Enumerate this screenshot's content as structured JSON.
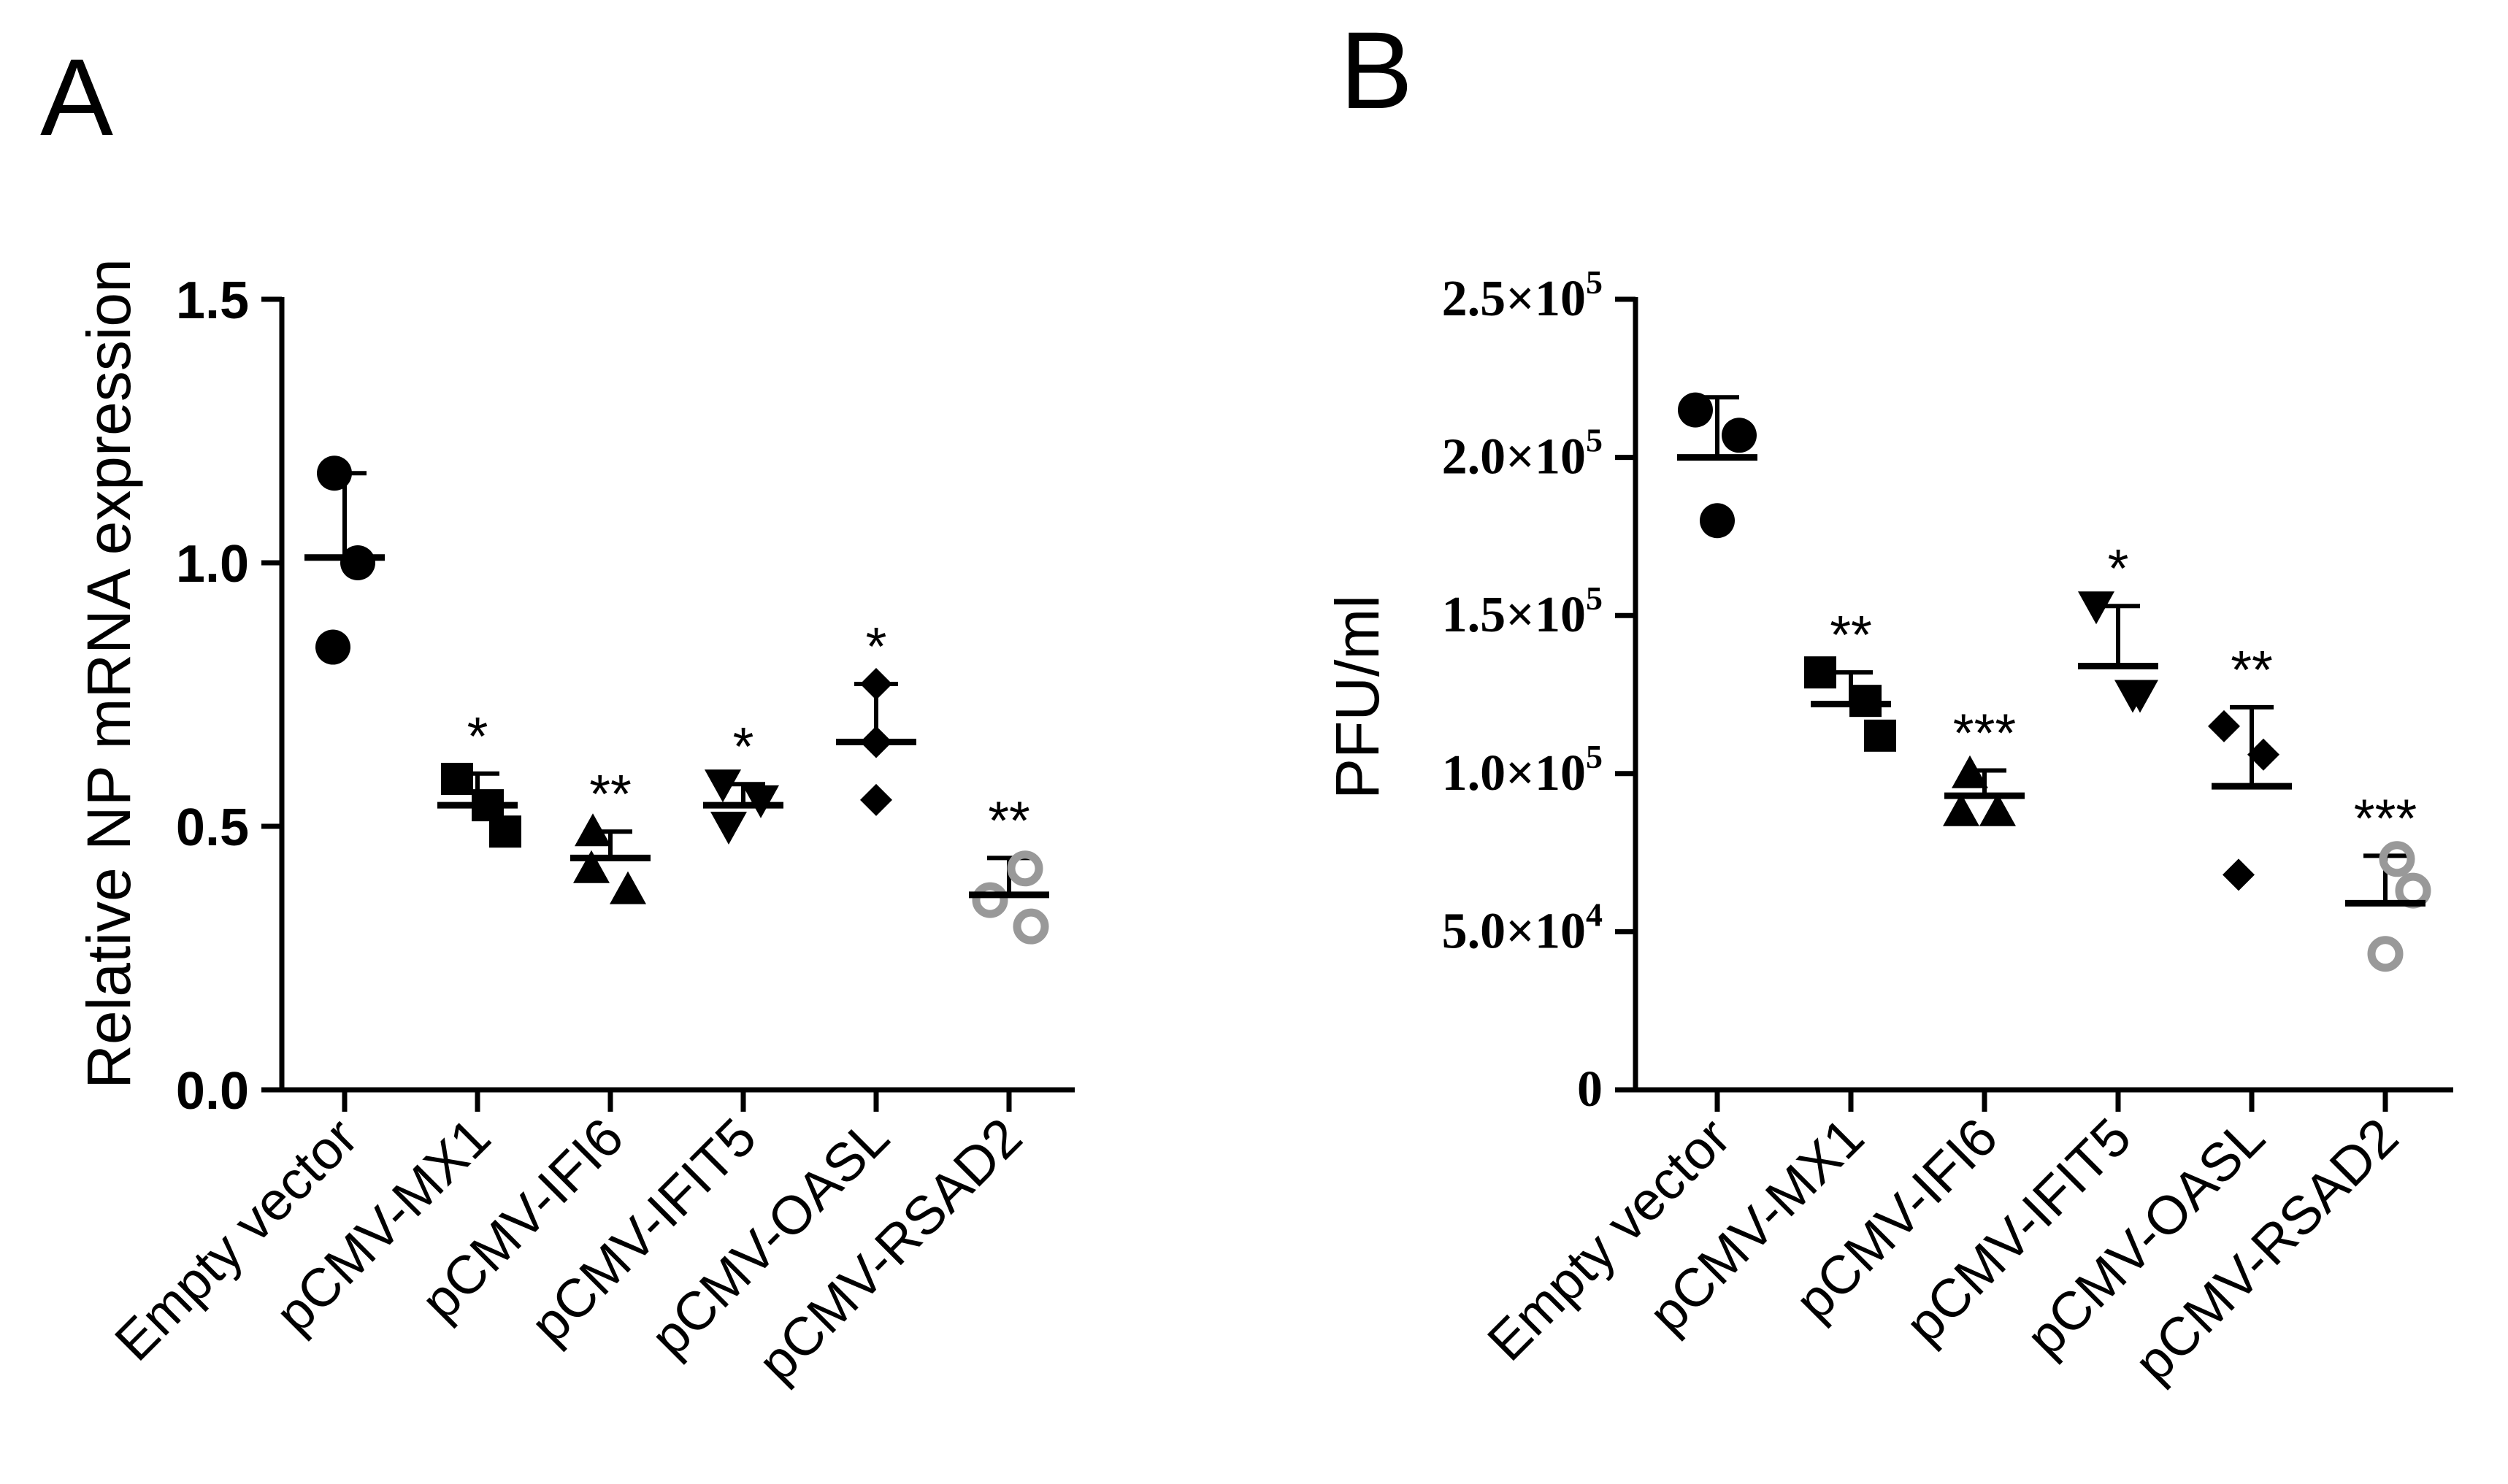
{
  "chart_data": [
    {
      "panel_label": "A",
      "type": "scatter",
      "ylabel": "Relative NP mRNA expression",
      "xlabel": "",
      "ylim": [
        0,
        1.5
      ],
      "yticks": [
        0.0,
        0.5,
        1.0,
        1.5
      ],
      "ytick_labels": [
        "0.0",
        "0.5",
        "1.0",
        "1.5"
      ],
      "categories": [
        "Empty vector",
        "pCMV-MX1",
        "pCMV-IFI6",
        "pCMV-IFIT5",
        "pCMV-OASL",
        "pCMV-RSAD2"
      ],
      "markers": [
        "circle",
        "square",
        "triangle-up",
        "triangle-down",
        "diamond",
        "circle-open"
      ],
      "marker_colors": [
        "#000000",
        "#000000",
        "#000000",
        "#000000",
        "#000000",
        "#999999"
      ],
      "series": [
        {
          "name": "Empty vector",
          "points": [
            1.17,
            1.0,
            0.84
          ],
          "mean": 1.01,
          "sd_upper": 1.17,
          "significance": ""
        },
        {
          "name": "pCMV-MX1",
          "points": [
            0.59,
            0.54,
            0.49
          ],
          "mean": 0.54,
          "sd_upper": 0.6,
          "significance": "*"
        },
        {
          "name": "pCMV-IFI6",
          "points": [
            0.49,
            0.42,
            0.38
          ],
          "mean": 0.44,
          "sd_upper": 0.49,
          "significance": "**"
        },
        {
          "name": "pCMV-IFIT5",
          "points": [
            0.58,
            0.55,
            0.5
          ],
          "mean": 0.54,
          "sd_upper": 0.58,
          "significance": "*"
        },
        {
          "name": "pCMV-OASL",
          "points": [
            0.77,
            0.66,
            0.55
          ],
          "mean": 0.66,
          "sd_upper": 0.77,
          "significance": "*"
        },
        {
          "name": "pCMV-RSAD2",
          "points": [
            0.42,
            0.36,
            0.31
          ],
          "mean": 0.37,
          "sd_upper": 0.44,
          "significance": "**"
        }
      ]
    },
    {
      "panel_label": "B",
      "type": "scatter",
      "ylabel": "PFU/ml",
      "xlabel": "",
      "ylim": [
        0,
        250000
      ],
      "yticks": [
        0,
        50000,
        100000,
        150000,
        200000,
        250000
      ],
      "ytick_labels": [
        {
          "mantissa": "0",
          "exponent": ""
        },
        {
          "mantissa": "5.0×10",
          "exponent": "4"
        },
        {
          "mantissa": "1.0×10",
          "exponent": "5"
        },
        {
          "mantissa": "1.5×10",
          "exponent": "5"
        },
        {
          "mantissa": "2.0×10",
          "exponent": "5"
        },
        {
          "mantissa": "2.5×10",
          "exponent": "5"
        }
      ],
      "categories": [
        "Empty vector",
        "pCMV-MX1",
        "pCMV-IFI6",
        "pCMV-IFIT5",
        "pCMV-OASL",
        "pCMV-RSAD2"
      ],
      "markers": [
        "circle",
        "square",
        "triangle-up",
        "triangle-down",
        "diamond",
        "circle-open"
      ],
      "marker_colors": [
        "#000000",
        "#000000",
        "#000000",
        "#000000",
        "#000000",
        "#999999"
      ],
      "series": [
        {
          "name": "Empty vector",
          "points": [
            215000,
            207000,
            180000
          ],
          "mean": 200000,
          "sd_upper": 219000,
          "significance": ""
        },
        {
          "name": "pCMV-MX1",
          "points": [
            132000,
            123000,
            112000
          ],
          "mean": 122000,
          "sd_upper": 132000,
          "significance": "**"
        },
        {
          "name": "pCMV-IFI6",
          "points": [
            100000,
            88000,
            88000
          ],
          "mean": 93000,
          "sd_upper": 101000,
          "significance": "***"
        },
        {
          "name": "pCMV-IFIT5",
          "points": [
            153000,
            125000,
            125000
          ],
          "mean": 134000,
          "sd_upper": 153000,
          "significance": "*"
        },
        {
          "name": "pCMV-OASL",
          "points": [
            115000,
            106000,
            68000
          ],
          "mean": 96000,
          "sd_upper": 121000,
          "significance": "**"
        },
        {
          "name": "pCMV-RSAD2",
          "points": [
            73000,
            63000,
            43000
          ],
          "mean": 59000,
          "sd_upper": 74000,
          "significance": "***"
        }
      ]
    }
  ]
}
